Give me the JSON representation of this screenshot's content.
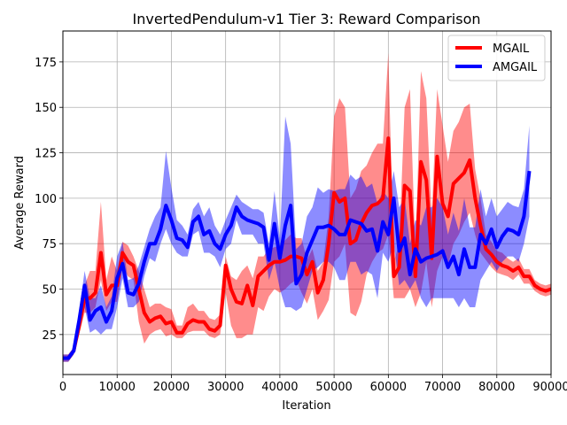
{
  "chart_data": {
    "type": "line",
    "title": "InvertedPendulum-v1 Tier 3: Reward Comparison",
    "xlabel": "Iteration",
    "ylabel": "Average Reward",
    "xlim": [
      0,
      90000
    ],
    "ylim": [
      3,
      192
    ],
    "xticks": [
      0,
      10000,
      20000,
      30000,
      40000,
      50000,
      60000,
      70000,
      80000,
      90000
    ],
    "xtick_labels": [
      "0",
      "10000",
      "20000",
      "30000",
      "40000",
      "50000",
      "60000",
      "70000",
      "80000",
      "90000"
    ],
    "yticks": [
      25,
      50,
      75,
      100,
      125,
      150,
      175
    ],
    "ytick_labels": [
      "25",
      "50",
      "75",
      "100",
      "125",
      "150",
      "175"
    ],
    "grid": true,
    "legend_position": "top-right",
    "series": [
      {
        "name": "MGAIL",
        "color": "#ff0000",
        "band_color": "#ff0000",
        "x": [
          0,
          1000,
          2000,
          3000,
          4000,
          5000,
          6000,
          7000,
          8000,
          9000,
          10000,
          11000,
          12000,
          13000,
          14000,
          15000,
          16000,
          17000,
          18000,
          19000,
          20000,
          21000,
          22000,
          23000,
          24000,
          25000,
          26000,
          27000,
          28000,
          29000,
          30000,
          31000,
          32000,
          33000,
          34000,
          35000,
          36000,
          37000,
          38000,
          39000,
          40000,
          41000,
          42000,
          43000,
          44000,
          45000,
          46000,
          47000,
          48000,
          49000,
          50000,
          51000,
          52000,
          53000,
          54000,
          55000,
          56000,
          57000,
          58000,
          59000,
          60000,
          61000,
          62000,
          63000,
          64000,
          65000,
          66000,
          67000,
          68000,
          69000,
          70000,
          71000,
          72000,
          73000,
          74000,
          75000,
          76000,
          77000,
          78000,
          79000,
          80000,
          81000,
          82000,
          83000,
          84000,
          85000,
          86000,
          87000,
          88000,
          89000,
          90000
        ],
        "values": [
          12,
          12,
          16,
          30,
          45,
          45,
          48,
          70,
          47,
          52,
          52,
          70,
          65,
          63,
          50,
          37,
          32,
          34,
          35,
          31,
          32,
          26,
          26,
          31,
          33,
          32,
          32,
          28,
          27,
          30,
          63,
          50,
          43,
          42,
          52,
          41,
          57,
          60,
          63,
          65,
          65,
          66,
          68,
          68,
          67,
          58,
          65,
          48,
          55,
          75,
          103,
          98,
          100,
          75,
          77,
          86,
          92,
          96,
          97,
          100,
          133,
          57,
          62,
          107,
          104,
          57,
          120,
          110,
          67,
          123,
          97,
          90,
          108,
          111,
          114,
          121,
          100,
          85,
          72,
          69,
          65,
          63,
          62,
          60,
          62,
          57,
          57,
          52,
          50,
          49,
          50
        ],
        "lower": [
          10,
          10,
          14,
          25,
          37,
          37,
          40,
          55,
          38,
          43,
          43,
          62,
          57,
          55,
          32,
          20,
          25,
          27,
          28,
          24,
          25,
          23,
          23,
          26,
          27,
          27,
          27,
          24,
          23,
          25,
          48,
          30,
          23,
          23,
          25,
          25,
          40,
          38,
          46,
          50,
          48,
          50,
          53,
          55,
          48,
          42,
          50,
          33,
          38,
          44,
          65,
          68,
          75,
          37,
          35,
          43,
          58,
          65,
          70,
          72,
          80,
          45,
          45,
          45,
          50,
          40,
          48,
          65,
          40,
          60,
          68,
          63,
          75,
          80,
          87,
          92,
          80,
          70,
          66,
          62,
          59,
          58,
          57,
          55,
          58,
          53,
          53,
          49,
          47,
          46,
          47
        ],
        "upper": [
          14,
          14,
          18,
          33,
          52,
          60,
          60,
          98,
          55,
          68,
          60,
          76,
          74,
          68,
          60,
          50,
          40,
          42,
          42,
          40,
          39,
          30,
          30,
          40,
          42,
          38,
          38,
          34,
          33,
          36,
          68,
          57,
          55,
          60,
          63,
          56,
          68,
          68,
          72,
          73,
          74,
          77,
          80,
          78,
          78,
          66,
          72,
          60,
          65,
          90,
          145,
          155,
          150,
          100,
          105,
          115,
          118,
          125,
          130,
          130,
          180,
          65,
          75,
          150,
          160,
          70,
          170,
          155,
          90,
          160,
          140,
          120,
          137,
          142,
          150,
          152,
          116,
          100,
          80,
          76,
          71,
          70,
          67,
          65,
          67,
          61,
          61,
          55,
          53,
          52,
          53
        ]
      },
      {
        "name": "AMGAIL",
        "color": "#0000ff",
        "band_color": "#0000ff",
        "x": [
          0,
          1000,
          2000,
          3000,
          4000,
          5000,
          6000,
          7000,
          8000,
          9000,
          10000,
          11000,
          12000,
          13000,
          14000,
          15000,
          16000,
          17000,
          18000,
          19000,
          20000,
          21000,
          22000,
          23000,
          24000,
          25000,
          26000,
          27000,
          28000,
          29000,
          30000,
          31000,
          32000,
          33000,
          34000,
          35000,
          36000,
          37000,
          38000,
          39000,
          40000,
          41000,
          42000,
          43000,
          44000,
          45000,
          46000,
          47000,
          48000,
          49000,
          50000,
          51000,
          52000,
          53000,
          54000,
          55000,
          56000,
          57000,
          58000,
          59000,
          60000,
          61000,
          62000,
          63000,
          64000,
          65000,
          66000,
          67000,
          68000,
          69000,
          70000,
          71000,
          72000,
          73000,
          74000,
          75000,
          76000,
          77000,
          78000,
          79000,
          80000,
          81000,
          82000,
          83000,
          84000,
          85000,
          86000
        ],
        "values": [
          12,
          12,
          16,
          33,
          52,
          33,
          38,
          40,
          32,
          38,
          56,
          64,
          48,
          47,
          53,
          65,
          75,
          75,
          83,
          96,
          88,
          78,
          77,
          73,
          87,
          90,
          80,
          82,
          75,
          72,
          80,
          85,
          95,
          90,
          88,
          87,
          86,
          84,
          66,
          86,
          67,
          85,
          96,
          53,
          58,
          70,
          77,
          84,
          84,
          85,
          83,
          80,
          80,
          88,
          87,
          86,
          82,
          83,
          71,
          87,
          80,
          100,
          71,
          78,
          58,
          72,
          65,
          67,
          68,
          69,
          71,
          62,
          68,
          58,
          72,
          62,
          62,
          80,
          75,
          83,
          73,
          79,
          83,
          82,
          80,
          90,
          115
        ],
        "lower": [
          10,
          10,
          14,
          28,
          40,
          26,
          28,
          25,
          28,
          28,
          40,
          56,
          40,
          40,
          43,
          57,
          67,
          65,
          75,
          83,
          75,
          70,
          68,
          68,
          80,
          82,
          70,
          70,
          68,
          62,
          72,
          75,
          88,
          80,
          80,
          80,
          75,
          75,
          55,
          65,
          50,
          40,
          40,
          38,
          40,
          50,
          60,
          62,
          65,
          65,
          62,
          55,
          55,
          65,
          65,
          58,
          60,
          58,
          45,
          70,
          65,
          75,
          52,
          55,
          50,
          55,
          45,
          40,
          45,
          45,
          45,
          45,
          45,
          40,
          45,
          40,
          40,
          55,
          60,
          65,
          60,
          65,
          68,
          68,
          65,
          75,
          90
        ],
        "upper": [
          14,
          14,
          18,
          38,
          60,
          45,
          45,
          52,
          40,
          46,
          68,
          76,
          55,
          56,
          63,
          73,
          83,
          90,
          95,
          126,
          106,
          88,
          85,
          80,
          94,
          98,
          90,
          95,
          85,
          80,
          88,
          95,
          102,
          98,
          96,
          94,
          94,
          92,
          75,
          104,
          78,
          145,
          130,
          72,
          75,
          90,
          95,
          106,
          103,
          105,
          104,
          105,
          105,
          113,
          110,
          112,
          106,
          108,
          97,
          104,
          100,
          115,
          95,
          100,
          75,
          88,
          85,
          95,
          95,
          100,
          95,
          80,
          92,
          82,
          100,
          84,
          84,
          105,
          90,
          100,
          90,
          94,
          98,
          96,
          95,
          105,
          140
        ]
      }
    ]
  }
}
